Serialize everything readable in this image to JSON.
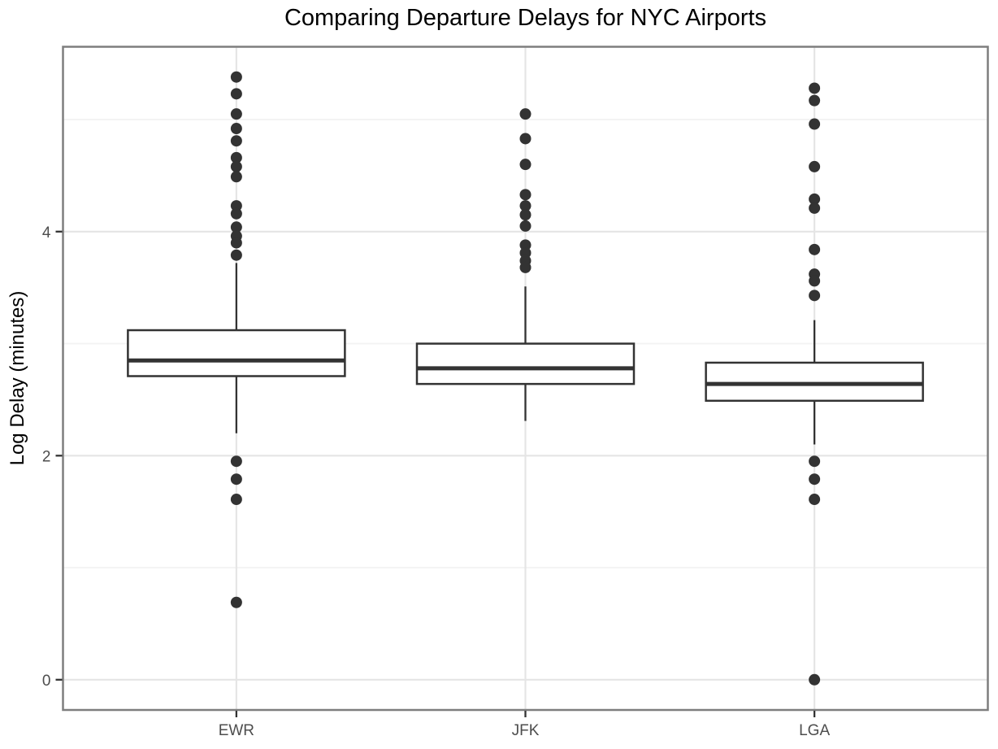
{
  "title": "Comparing Departure Delays for NYC Airports",
  "colors": {
    "background": "#ffffff",
    "panel_border": "#7e7e7e",
    "grid_major": "#e5e5e5",
    "grid_minor": "#f3f3f3",
    "box_stroke": "#333333",
    "box_fill": "#ffffff",
    "outlier": "#333333",
    "tick_mark": "#333333",
    "tick_label": "#4d4d4d",
    "title_text": "#000000"
  },
  "chart_data": {
    "type": "boxplot",
    "title": "Comparing Departure Delays for NYC Airports",
    "xlabel": "",
    "ylabel": "Log Delay (minutes)",
    "categories": [
      "EWR",
      "JFK",
      "LGA"
    ],
    "yticks": [
      0,
      2,
      4
    ],
    "yticks_minor": [
      1,
      3,
      5
    ],
    "ylim": [
      -0.27,
      5.65
    ],
    "grid": true,
    "legend": false,
    "series": [
      {
        "name": "EWR",
        "q1": 2.71,
        "median": 2.85,
        "q3": 3.12,
        "whisker_low": 2.2,
        "whisker_high": 3.72,
        "outliers": [
          5.38,
          5.23,
          5.05,
          4.92,
          4.81,
          4.66,
          4.58,
          4.49,
          4.23,
          4.16,
          4.04,
          3.96,
          3.9,
          3.79,
          1.95,
          1.79,
          1.61,
          0.69
        ]
      },
      {
        "name": "JFK",
        "q1": 2.64,
        "median": 2.78,
        "q3": 3.0,
        "whisker_low": 2.31,
        "whisker_high": 3.51,
        "outliers": [
          5.05,
          4.83,
          4.6,
          4.33,
          4.23,
          4.15,
          4.05,
          3.88,
          3.81,
          3.74,
          3.68
        ]
      },
      {
        "name": "LGA",
        "q1": 2.49,
        "median": 2.64,
        "q3": 2.83,
        "whisker_low": 2.1,
        "whisker_high": 3.21,
        "outliers": [
          5.28,
          5.17,
          4.96,
          4.58,
          4.29,
          4.21,
          3.84,
          3.62,
          3.56,
          3.43,
          1.95,
          1.79,
          1.61,
          0.0
        ]
      }
    ]
  }
}
